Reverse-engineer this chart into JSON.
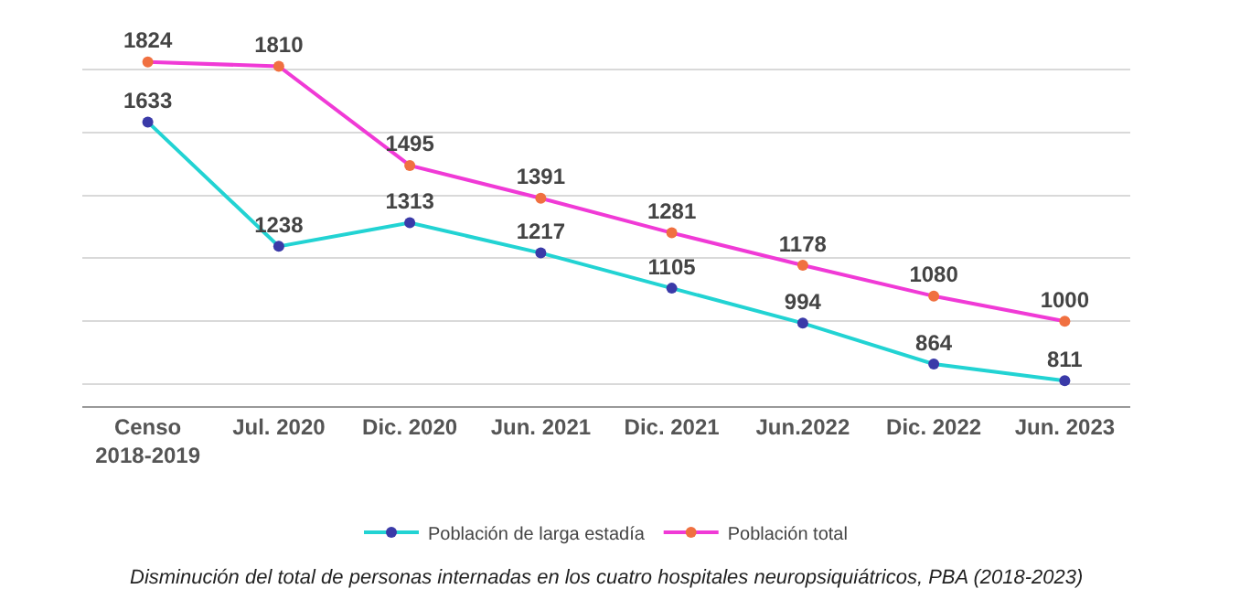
{
  "chart_data": {
    "type": "line",
    "categories": [
      "Censo 2018-2019",
      "Jul. 2020",
      "Dic. 2020",
      "Jun. 2021",
      "Dic. 2021",
      "Jun.2022",
      "Dic. 2022",
      "Jun. 2023"
    ],
    "series": [
      {
        "name": "Población de larga estadía",
        "color": "#22d3d3",
        "colors": [
          "#3a3aa8",
          "#3a3aa8",
          "#3a3aa8",
          "#3a3aa8",
          "#3a3aa8",
          "#3a3aa8",
          "#3a3aa8",
          "#3a3aa8"
        ],
        "values": [
          1633,
          1238,
          1313,
          1217,
          1105,
          994,
          864,
          811
        ]
      },
      {
        "name": "Población total",
        "color": "#f03ad6",
        "colors": [
          "#f07040",
          "#f07040",
          "#f07040",
          "#f07040",
          "#f07040",
          "#f07040",
          "#f07040",
          "#f07040"
        ],
        "values": [
          1824,
          1810,
          1495,
          1391,
          1281,
          1178,
          1080,
          1000
        ]
      }
    ],
    "tick_labels": "x",
    "grid": "y",
    "legend": "bottom",
    "marker": "circle",
    "line_style": "solid",
    "data_labels": true,
    "annotations": [
      "Disminución del total de personas internadas en los cuatro hospitales neuropsiquiátricos, PBA (2018-2023)"
    ]
  }
}
